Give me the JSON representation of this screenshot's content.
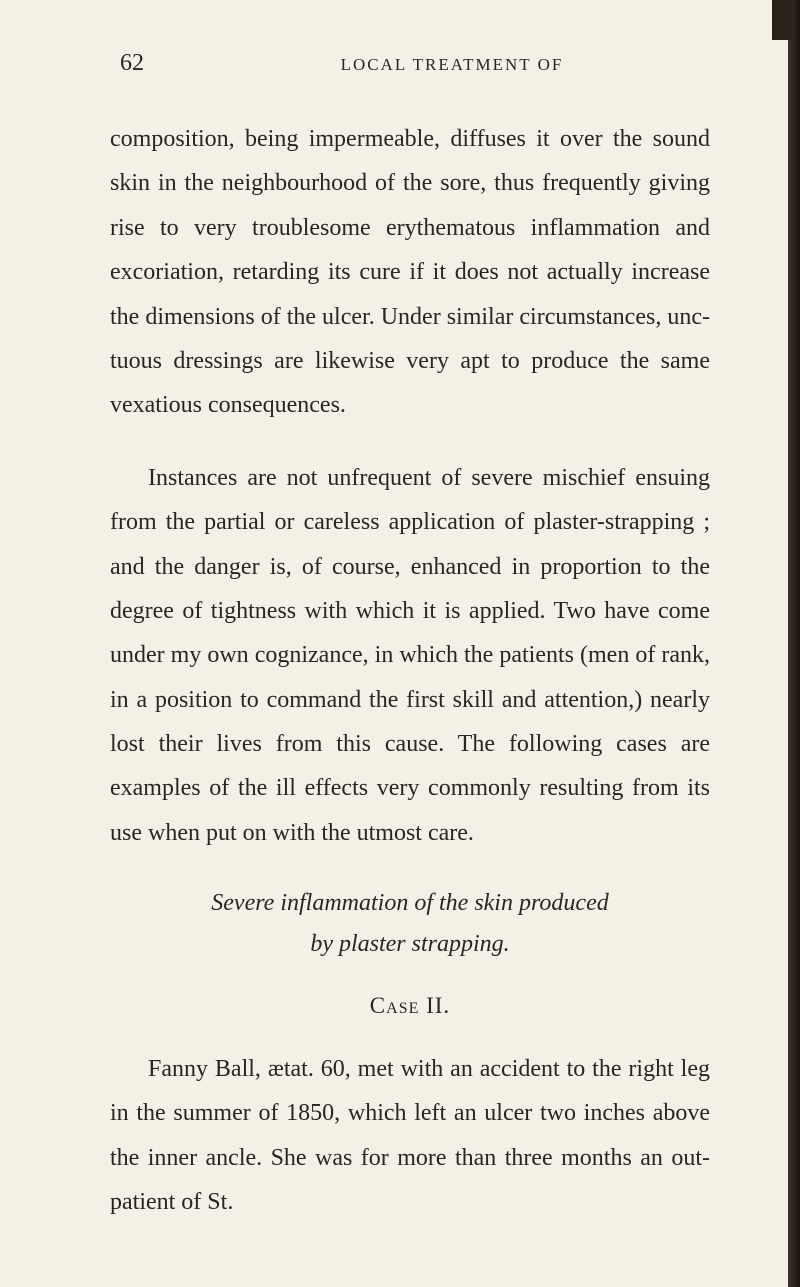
{
  "page": {
    "number": "62",
    "running_header": "LOCAL TREATMENT OF"
  },
  "paragraphs": {
    "p1": "composition, being impermeable, diffuses it over the sound skin in the neighbourhood of the sore, thus frequently giving rise to very troublesome erythe­matous inflammation and excoriation, retarding its cure if it does not actually increase the dimensions of the ulcer. Under similar circumstances, unc­tuous dressings are likewise very apt to produce the same vexatious consequences.",
    "p2": "Instances are not unfrequent of severe mis­chief ensuing from the partial or careless appli­cation of plaster-strapping ; and the danger is, of course, enhanced in proportion to the degree of tightness with which it is applied. Two have come under my own cognizance, in which the patients (men of rank, in a position to command the first skill and attention,) nearly lost their lives from this cause. The following cases are examples of the ill effects very commonly resulting from its use when put on with the utmost care.",
    "p3": "Fanny Ball, ætat. 60, met with an accident to the right leg in the summer of 1850, which left an ulcer two inches above the inner ancle. She was for more than three months an out-patient of St."
  },
  "section_title": {
    "line1": "Severe inflammation of the skin produced",
    "line2": "by plaster strapping."
  },
  "case_label": "Case II.",
  "colors": {
    "background": "#f5f0e6",
    "text": "#2a2520",
    "border": "#1a1510"
  }
}
